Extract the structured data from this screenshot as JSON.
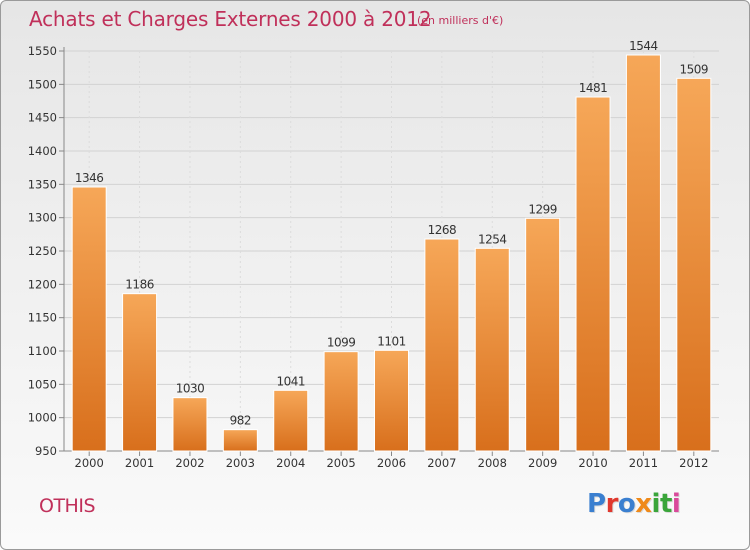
{
  "title": "Achats et Charges Externes 2000 à 2012",
  "subtitle": "(en milliers d'€)",
  "place": "OTHIS",
  "logo_text": "Proxiti",
  "colors": {
    "title": "#c0305a",
    "bar_top": "#f6a758",
    "bar_bottom": "#d86f1c",
    "logo": [
      "#3a7fd0",
      "#e0382e",
      "#3a7fd0",
      "#ef8a1a",
      "#3aa53a",
      "#3aa53a",
      "#d94a9a"
    ]
  },
  "chart_data": {
    "type": "bar",
    "title": "Achats et Charges Externes 2000 à 2012",
    "subtitle": "(en milliers d'€)",
    "xlabel": "",
    "ylabel": "",
    "categories": [
      "2000",
      "2001",
      "2002",
      "2003",
      "2004",
      "2005",
      "2006",
      "2007",
      "2008",
      "2009",
      "2010",
      "2011",
      "2012"
    ],
    "values": [
      1346,
      1186,
      1030,
      982,
      1041,
      1099,
      1101,
      1268,
      1254,
      1299,
      1481,
      1544,
      1509
    ],
    "ylim": [
      950,
      1550
    ],
    "yticks": [
      950,
      1000,
      1050,
      1100,
      1150,
      1200,
      1250,
      1300,
      1350,
      1400,
      1450,
      1500,
      1550
    ],
    "grid": true,
    "data_labels": true
  }
}
